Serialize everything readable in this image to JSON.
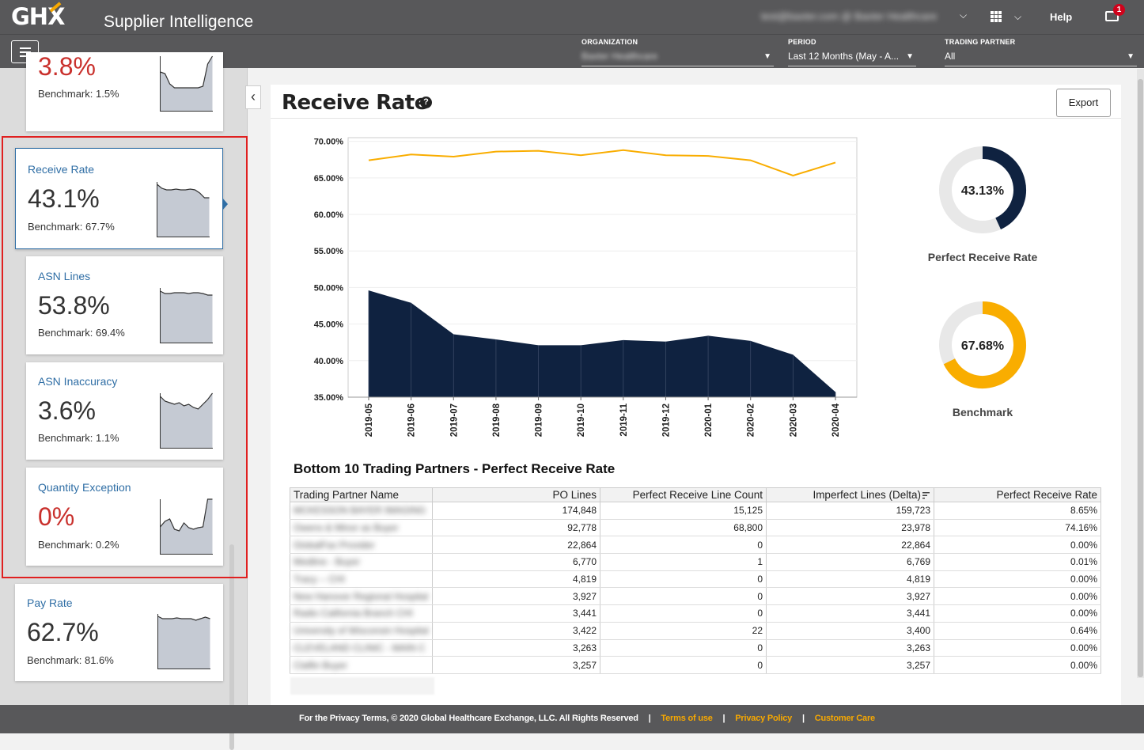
{
  "header": {
    "logo": "GHX",
    "app_title": "Supplier Intelligence",
    "user_name": "test@baxter.com @ Baxter Healthcare",
    "help_label": "Help",
    "notification_count": "1"
  },
  "filters": [
    {
      "label": "ORGANIZATION",
      "value": "Baxter Healthcare",
      "blurred": true
    },
    {
      "label": "PERIOD",
      "value": "Last 12 Months (May - A..."
    },
    {
      "label": "TRADING PARTNER",
      "value": "All"
    }
  ],
  "sidebar": {
    "cards": [
      {
        "title": "",
        "value": "3.8%",
        "benchmark": "Benchmark: 1.5%",
        "value_color": "red",
        "spark": [
          20,
          22,
          35,
          40,
          40,
          40,
          40,
          40,
          40,
          38,
          10,
          0
        ]
      },
      {
        "title": "Receive Rate",
        "value": "43.1%",
        "benchmark": "Benchmark: 67.7%",
        "selected": true,
        "spark": [
          3,
          8,
          10,
          10,
          9,
          10,
          10,
          9,
          10,
          14,
          20,
          20
        ]
      },
      {
        "title": "ASN Lines",
        "value": "53.8%",
        "benchmark": "Benchmark: 69.4%",
        "spark": [
          4,
          7,
          7,
          6,
          6,
          6,
          7,
          6,
          6,
          7,
          9,
          9
        ]
      },
      {
        "title": "ASN Inaccuracy",
        "value": "3.6%",
        "benchmark": "Benchmark: 1.1%",
        "spark": [
          4,
          10,
          12,
          14,
          12,
          16,
          14,
          18,
          20,
          14,
          8,
          0
        ]
      },
      {
        "title": "Quantity Exception",
        "value": "0%",
        "benchmark": "Benchmark: 0.2%",
        "value_color": "red",
        "spark": [
          35,
          28,
          25,
          38,
          40,
          30,
          36,
          38,
          36,
          35,
          0,
          0
        ]
      },
      {
        "title": "Pay Rate",
        "value": "62.7%",
        "benchmark": "Benchmark: 81.6%",
        "spark": [
          3,
          6,
          6,
          6,
          5,
          6,
          6,
          6,
          8,
          6,
          4,
          6
        ]
      }
    ]
  },
  "main": {
    "title": "Receive Rate",
    "export_label": "Export",
    "donuts": [
      {
        "value": 43.13,
        "label_text": "43.13%",
        "caption": "Perfect Receive Rate",
        "color": "#0f2240"
      },
      {
        "value": 67.68,
        "label_text": "67.68%",
        "caption": "Benchmark",
        "color": "#f9ad00"
      }
    ],
    "table": {
      "title": "Bottom 10 Trading Partners - Perfect Receive Rate",
      "columns": [
        "Trading Partner Name",
        "PO Lines",
        "Perfect Receive Line Count",
        "Imperfect Lines (Delta)",
        "Perfect Receive Rate"
      ],
      "rows": [
        [
          "MCKESSON BAYER IMAGING",
          "174,848",
          "15,125",
          "159,723",
          "8.65%"
        ],
        [
          "Owens & Minor as Buyer",
          "92,778",
          "68,800",
          "23,978",
          "74.16%"
        ],
        [
          "GlobalFax Provider",
          "22,864",
          "0",
          "22,864",
          "0.00%"
        ],
        [
          "Medline - Buyer",
          "6,770",
          "1",
          "6,769",
          "0.01%"
        ],
        [
          "Tracy -- CHI",
          "4,819",
          "0",
          "4,819",
          "0.00%"
        ],
        [
          "New Hanover Regional Hospital",
          "3,927",
          "0",
          "3,927",
          "0.00%"
        ],
        [
          "Radio California Branch CHI",
          "3,441",
          "0",
          "3,441",
          "0.00%"
        ],
        [
          "University of Wisconsin Hospital",
          "3,422",
          "22",
          "3,400",
          "0.64%"
        ],
        [
          "CLEVELAND CLINIC - MAIN C",
          "3,263",
          "0",
          "3,263",
          "0.00%"
        ],
        [
          "Claflin Buyer",
          "3,257",
          "0",
          "3,257",
          "0.00%"
        ]
      ]
    }
  },
  "chart_data": {
    "type": "area",
    "x": [
      "2019-05",
      "2019-06",
      "2019-07",
      "2019-08",
      "2019-09",
      "2019-10",
      "2019-11",
      "2019-12",
      "2020-01",
      "2020-02",
      "2020-03",
      "2020-04"
    ],
    "series": [
      {
        "values": [
          49.6,
          47.9,
          43.6,
          42.9,
          42.1,
          42.1,
          42.8,
          42.6,
          43.4,
          42.7,
          40.8,
          35.7
        ],
        "color": "#0f2240",
        "kind": "area"
      },
      {
        "values": [
          67.4,
          68.2,
          67.9,
          68.6,
          68.7,
          68.1,
          68.8,
          68.1,
          68.0,
          67.4,
          65.3,
          67.1
        ],
        "color": "#f9ad00",
        "kind": "line"
      }
    ],
    "ylim": [
      35,
      70.5
    ],
    "yticks": [
      "70.00%",
      "65.00%",
      "60.00%",
      "55.00%",
      "50.00%",
      "45.00%",
      "40.00%",
      "35.00%"
    ],
    "ytick_values": [
      70,
      65,
      60,
      55,
      50,
      45,
      40,
      35
    ],
    "grid": true
  },
  "footer": {
    "copyright": "For the Privacy Terms, © 2020 Global Healthcare Exchange, LLC. All Rights Reserved",
    "links": [
      "Terms of use",
      "Privacy Policy",
      "Customer Care"
    ]
  }
}
